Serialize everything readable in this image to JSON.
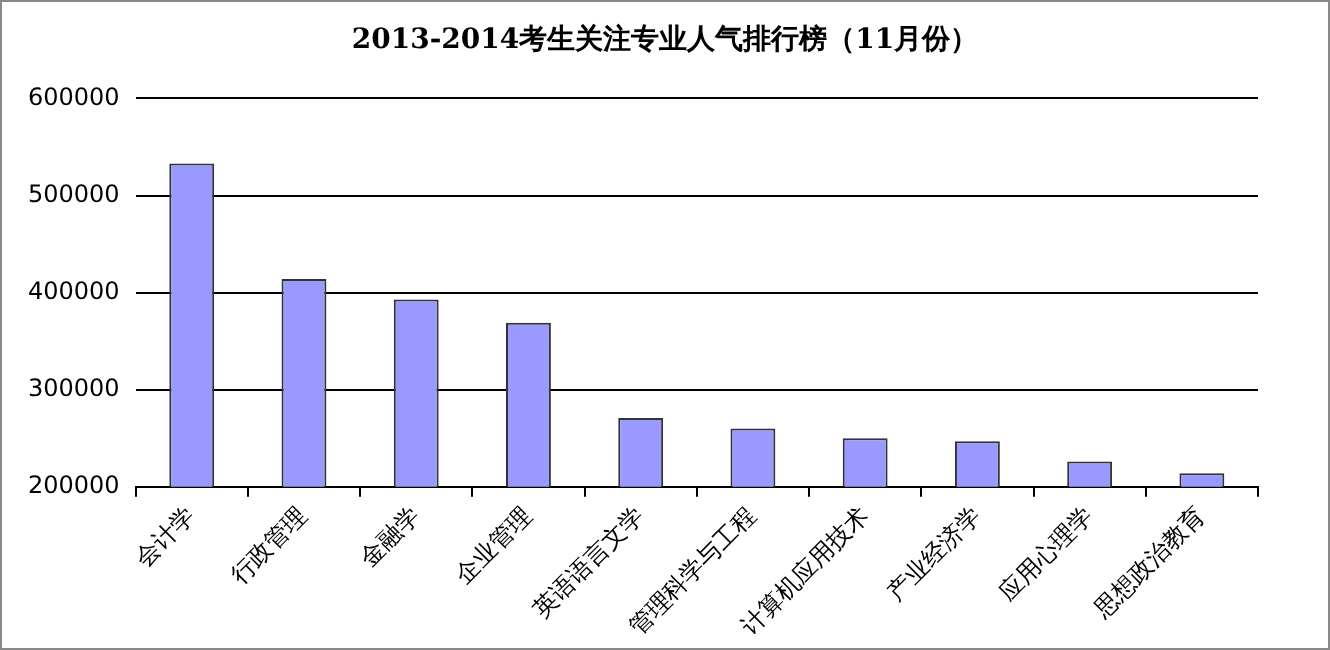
{
  "chart_data": {
    "type": "bar",
    "title": "2013-2014考生关注专业人气排行榜（11月份）",
    "categories": [
      "会计学",
      "行政管理",
      "金融学",
      "企业管理",
      "英语语言文学",
      "管理科学与工程",
      "计算机应用技术",
      "产业经济学",
      "应用心理学",
      "思想政治教育"
    ],
    "values": [
      533000,
      414000,
      393000,
      369000,
      271000,
      260000,
      250000,
      247000,
      226000,
      214000
    ],
    "color": "#9999ff",
    "ylim": [
      200000,
      600000
    ],
    "yticks": [
      200000,
      300000,
      400000,
      500000,
      600000
    ],
    "grid": "y"
  }
}
